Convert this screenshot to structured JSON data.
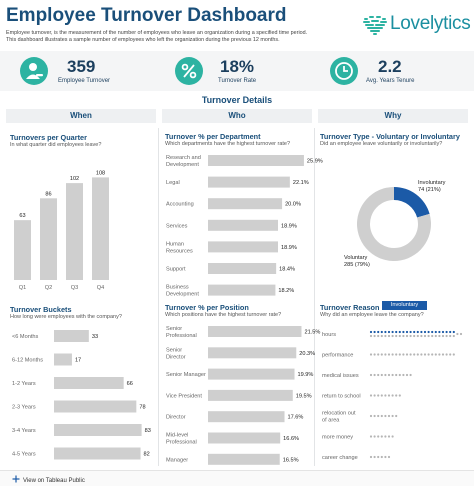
{
  "header": {
    "title": "Employee Turnover Dashboard",
    "description_line1": "Employee turnover, is the measurement of the number of employees who leave an organization during a specified time period.",
    "description_line2": "This dashboard illustrates a sample number of employees who left the organization during the previous 12 months.",
    "logo_text": "Lovelytics"
  },
  "kpis": [
    {
      "value": "359",
      "label": "Employee Turnover",
      "icon": "person-minus-icon"
    },
    {
      "value": "18%",
      "label": "Turnover Rate",
      "icon": "percent-icon"
    },
    {
      "value": "2.2",
      "label": "Avg. Years Tenure",
      "icon": "clock-icon"
    }
  ],
  "section": {
    "title": "Turnover Details",
    "columns": [
      "When",
      "Who",
      "Why"
    ]
  },
  "colors": {
    "accent": "#2db3a2",
    "navy": "#1a4f7a",
    "bar": "#cfcfcf",
    "highlight": "#1b5aa7"
  },
  "chart_data": [
    {
      "type": "bar",
      "title": "Turnovers per Quarter",
      "subtitle": "In what quarter did employees leave?",
      "categories": [
        "Q1",
        "Q2",
        "Q3",
        "Q4"
      ],
      "values": [
        63,
        86,
        102,
        108
      ],
      "ylim": [
        0,
        120
      ]
    },
    {
      "type": "bar",
      "orientation": "horizontal",
      "title": "Turnover Buckets",
      "subtitle": "How long were employees with the company?",
      "categories": [
        "<6 Months",
        "6-12 Months",
        "1-2 Years",
        "2-3 Years",
        "3-4 Years",
        "4-5 Years"
      ],
      "values": [
        33,
        17,
        66,
        78,
        83,
        82
      ],
      "xlim": [
        0,
        90
      ]
    },
    {
      "type": "bar",
      "orientation": "horizontal",
      "title": "Turnover % per Department",
      "subtitle": "Which departments have the highest turnover rate?",
      "categories": [
        "Research and Development",
        "Legal",
        "Accounting",
        "Services",
        "Human Resources",
        "Support",
        "Business Development"
      ],
      "values": [
        25.9,
        22.1,
        20.0,
        18.9,
        18.9,
        18.4,
        18.2
      ],
      "labels": [
        "25.9%",
        "22.1%",
        "20.0%",
        "18.9%",
        "18.9%",
        "18.4%",
        "18.2%"
      ],
      "xlim": [
        0,
        27
      ]
    },
    {
      "type": "bar",
      "orientation": "horizontal",
      "title": "Turnover % per Position",
      "subtitle": "Which positions have the highest turnover rate?",
      "categories": [
        "Senior Professional",
        "Senior Director",
        "Senior Manager",
        "Vice President",
        "Director",
        "Mid-level Professional",
        "Manager"
      ],
      "values": [
        21.5,
        20.3,
        19.9,
        19.5,
        17.6,
        16.6,
        16.5
      ],
      "labels": [
        "21.5%",
        "20.3%",
        "19.9%",
        "19.5%",
        "17.6%",
        "16.6%",
        "16.5%"
      ],
      "xlim": [
        0,
        23
      ]
    },
    {
      "type": "pie",
      "title": "Turnover Type - Voluntary or Involuntary",
      "subtitle": "Did an employee leave voluntarily or involuntarily?",
      "series": [
        {
          "name": "Involuntary",
          "value": 74,
          "percent": "21%",
          "label": "74 (21%)",
          "color": "#1b5aa7"
        },
        {
          "name": "Voluntary",
          "value": 285,
          "percent": "79%",
          "label": "285 (79%)",
          "color": "#cfcfcf"
        }
      ]
    },
    {
      "type": "dot",
      "title": "Turnover Reason",
      "subtitle": "Why did an employee leave the company?",
      "filter_badge": "Involuntary",
      "categories": [
        "hours",
        "performance",
        "medical issues",
        "return to school",
        "relocation out of area",
        "more money",
        "career change"
      ],
      "values": [
        26,
        24,
        12,
        9,
        8,
        7,
        6
      ],
      "highlight_values": [
        24,
        0,
        0,
        0,
        0,
        0,
        0
      ]
    }
  ],
  "footer": {
    "link": "View on Tableau Public"
  }
}
